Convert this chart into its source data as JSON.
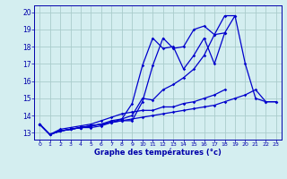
{
  "x": [
    0,
    1,
    2,
    3,
    4,
    5,
    6,
    7,
    8,
    9,
    10,
    11,
    12,
    13,
    14,
    15,
    16,
    17,
    18,
    19,
    20,
    21,
    22,
    23
  ],
  "line1": [
    13.5,
    12.9,
    13.1,
    13.2,
    13.3,
    13.3,
    13.4,
    13.6,
    13.7,
    13.7,
    14.8,
    16.9,
    18.5,
    17.9,
    18.0,
    19.0,
    19.2,
    18.7,
    19.8,
    19.8,
    null,
    null,
    null,
    null
  ],
  "line2": [
    13.5,
    12.9,
    13.1,
    13.2,
    13.3,
    13.4,
    13.5,
    13.6,
    13.8,
    14.7,
    16.9,
    18.5,
    17.9,
    18.0,
    16.7,
    17.5,
    18.5,
    17.0,
    18.8,
    19.8,
    17.0,
    15.0,
    14.8,
    14.8
  ],
  "line3": [
    13.5,
    12.9,
    13.1,
    13.2,
    13.3,
    13.4,
    13.5,
    13.7,
    13.8,
    14.0,
    15.0,
    14.9,
    15.5,
    15.8,
    16.2,
    16.7,
    17.5,
    18.7,
    18.8,
    null,
    null,
    null,
    null,
    null
  ],
  "line4": [
    13.5,
    12.9,
    13.2,
    13.3,
    13.4,
    13.5,
    13.7,
    13.9,
    14.1,
    14.2,
    14.3,
    14.3,
    14.5,
    14.5,
    14.7,
    14.8,
    15.0,
    15.2,
    15.5,
    null,
    null,
    null,
    null,
    null
  ],
  "line5": [
    13.5,
    12.9,
    13.1,
    13.2,
    13.3,
    13.4,
    13.5,
    13.6,
    13.7,
    13.8,
    13.9,
    14.0,
    14.1,
    14.2,
    14.3,
    14.4,
    14.5,
    14.6,
    14.8,
    15.0,
    15.2,
    15.5,
    14.8,
    14.8
  ],
  "line_color": "#0000cc",
  "bg_color": "#d4eef0",
  "grid_color": "#aacccc",
  "axis_color": "#0000aa",
  "xlabel": "Graphe des températures (°c)",
  "ylim": [
    12.6,
    20.4
  ],
  "xlim": [
    -0.5,
    23.5
  ],
  "yticks": [
    13,
    14,
    15,
    16,
    17,
    18,
    19,
    20
  ],
  "xticks": [
    0,
    1,
    2,
    3,
    4,
    5,
    6,
    7,
    8,
    9,
    10,
    11,
    12,
    13,
    14,
    15,
    16,
    17,
    18,
    19,
    20,
    21,
    22,
    23
  ]
}
